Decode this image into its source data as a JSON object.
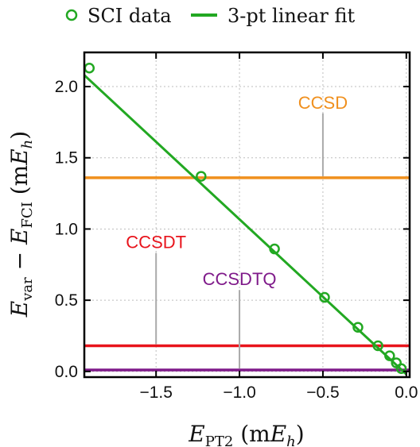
{
  "chart_data": {
    "type": "scatter",
    "xlabel": "E_PT2 (mE_h)",
    "ylabel": "E_var − E_FCI (mE_h)",
    "xlim": [
      -1.93,
      0.02
    ],
    "ylim": [
      -0.04,
      2.24
    ],
    "x_ticks": [
      "−1.5",
      "−1.0",
      "−0.5",
      "0.0"
    ],
    "x_tick_values": [
      -1.5,
      -1.0,
      -0.5,
      0.0
    ],
    "y_ticks": [
      "0.0",
      "0.5",
      "1.0",
      "1.5",
      "2.0"
    ],
    "y_tick_values": [
      0.0,
      0.5,
      1.0,
      1.5,
      2.0
    ],
    "grid": true,
    "legend": {
      "placement": "top",
      "entries": [
        {
          "label": "SCI data",
          "marker": "open-circle",
          "color": "#22a822"
        },
        {
          "label": "3-pt linear fit",
          "marker": "line",
          "color": "#22a822"
        }
      ]
    },
    "series": [
      {
        "name": "SCI data",
        "kind": "points",
        "color": "#22a822",
        "x": [
          -1.9,
          -1.23,
          -0.79,
          -0.49,
          -0.29,
          -0.17,
          -0.1,
          -0.06,
          -0.03
        ],
        "y": [
          2.13,
          1.37,
          0.86,
          0.52,
          0.31,
          0.18,
          0.11,
          0.06,
          0.02
        ]
      },
      {
        "name": "3-pt linear fit",
        "kind": "line",
        "color": "#22a822",
        "x": [
          -1.93,
          0.0
        ],
        "y": [
          2.08,
          -0.02
        ]
      }
    ],
    "reference_lines": [
      {
        "label": "CCSD",
        "y": 1.36,
        "color": "#f0901e",
        "label_x": -0.5,
        "label_y": 1.89
      },
      {
        "label": "CCSDT",
        "y": 0.18,
        "color": "#e8141c",
        "label_x": -1.5,
        "label_y": 0.91
      },
      {
        "label": "CCSDTQ",
        "y": 0.01,
        "color": "#7f1a8a",
        "label_x": -1.0,
        "label_y": 0.65
      }
    ]
  }
}
